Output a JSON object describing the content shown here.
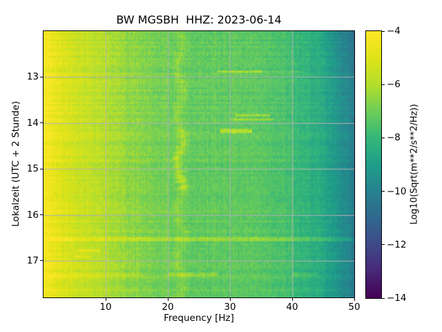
{
  "chart_data": {
    "type": "heatmap",
    "title": "BW MGSBH  HHZ: 2023-06-14",
    "station": "BW MGSBH",
    "channel": "HHZ",
    "date": "2023-06-14",
    "xlabel": "Frequency [Hz]",
    "ylabel": "Lokalzeit (UTC + 2 Stunde)",
    "x_range_hz": [
      0,
      50
    ],
    "x_ticks": [
      {
        "value": 10,
        "label": "10"
      },
      {
        "value": 20,
        "label": "20"
      },
      {
        "value": 30,
        "label": "30"
      },
      {
        "value": 40,
        "label": "40"
      },
      {
        "value": 50,
        "label": "50"
      }
    ],
    "y_range_hours": [
      12.0,
      17.8
    ],
    "y_ticks": [
      {
        "value": 13,
        "label": "13"
      },
      {
        "value": 14,
        "label": "14"
      },
      {
        "value": 15,
        "label": "15"
      },
      {
        "value": 16,
        "label": "16"
      },
      {
        "value": 17,
        "label": "17"
      }
    ],
    "grid": true,
    "grid_color": "#b2b2b2",
    "colormap": "viridis",
    "colorbar": {
      "label": "Log10(Sqrt(m**2/s**2/Hz))",
      "vmin": -14,
      "vmax": -4,
      "ticks": [
        {
          "value": -4,
          "label": "−4"
        },
        {
          "value": -6,
          "label": "−6"
        },
        {
          "value": -8,
          "label": "−8"
        },
        {
          "value": -10,
          "label": "−10"
        },
        {
          "value": -12,
          "label": "−12"
        },
        {
          "value": -14,
          "label": "−14"
        }
      ]
    },
    "spectral_profile": {
      "frequencies_hz": [
        0,
        1,
        2,
        3,
        4,
        5,
        6,
        8,
        10,
        12,
        14,
        16,
        18,
        20,
        21,
        23,
        25,
        28,
        30,
        33,
        35,
        37,
        39,
        40,
        41,
        42,
        43,
        44,
        45,
        46,
        47,
        48,
        49,
        50
      ],
      "log10_amplitude": [
        -4.45,
        -4.55,
        -4.75,
        -5.0,
        -5.15,
        -5.3,
        -5.45,
        -5.7,
        -5.95,
        -6.25,
        -6.5,
        -6.7,
        -6.9,
        -7.0,
        -7.05,
        -7.15,
        -7.2,
        -7.2,
        -7.2,
        -7.25,
        -7.3,
        -7.45,
        -7.65,
        -7.8,
        -8.0,
        -8.15,
        -8.25,
        -8.4,
        -8.65,
        -8.95,
        -9.25,
        -9.5,
        -9.75,
        -10.0
      ]
    },
    "persistent_line": {
      "frequency_hz": 22,
      "width_hz": 0.55,
      "base_amplitude": 0.5,
      "enhanced_interval_hours": [
        14.15,
        15.45
      ],
      "enhanced_amplitude": 1.0,
      "wiggle_hz": 0.5
    },
    "events": [
      {
        "time": 12.88,
        "f_min": 28,
        "f_max": 35,
        "amplitude": 1.25,
        "half_height_hours": 0.03
      },
      {
        "time": 12.88,
        "f_min": 35,
        "f_max": 42,
        "amplitude": 0.45,
        "half_height_hours": 0.03
      },
      {
        "time": 13.84,
        "f_min": 31,
        "f_max": 36.5,
        "amplitude": 1.0,
        "half_height_hours": 0.03
      },
      {
        "time": 13.93,
        "f_min": 30,
        "f_max": 37,
        "amplitude": 0.8,
        "half_height_hours": 0.03
      },
      {
        "time": 14.17,
        "f_min": 28.5,
        "f_max": 33.5,
        "amplitude": 1.3,
        "half_height_hours": 0.03
      },
      {
        "time": 16.53,
        "f_min": 0,
        "f_max": 50,
        "amplitude": 0.9,
        "half_height_hours": 0.035
      },
      {
        "time": 16.79,
        "f_min": 5.5,
        "f_max": 9,
        "amplitude": 1.2,
        "half_height_hours": 0.03
      },
      {
        "time": 16.91,
        "f_min": 5,
        "f_max": 7.5,
        "amplitude": 0.9,
        "half_height_hours": 0.028
      },
      {
        "time": 17.3,
        "f_min": 0,
        "f_max": 16,
        "amplitude": 0.35,
        "half_height_hours": 0.035
      },
      {
        "time": 17.3,
        "f_min": 20,
        "f_max": 28,
        "amplitude": 0.6,
        "half_height_hours": 0.035
      },
      {
        "time": 17.3,
        "f_min": 40,
        "f_max": 44,
        "amplitude": 0.45,
        "half_height_hours": 0.035
      }
    ],
    "noise": {
      "cell": 0.28,
      "row": 0.18,
      "column": 0.14,
      "low_freq_band_boost": 1.2
    }
  }
}
